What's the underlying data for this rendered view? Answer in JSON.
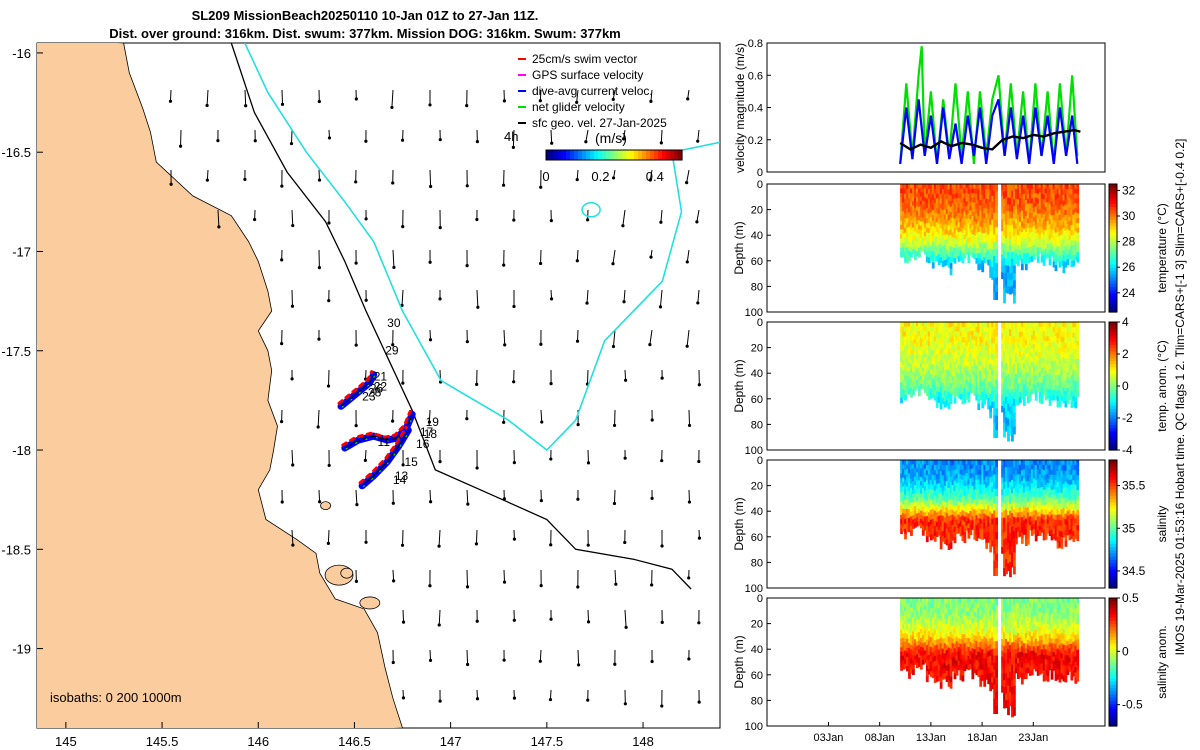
{
  "title": {
    "line1": "SL209 MissionBeach20250110 10-Jan 01Z to 27-Jan 11Z.",
    "line2": "Dist. over ground: 316km. Dist. swum: 377km. Mission DOG: 316km. Swum: 377km"
  },
  "side_label": "IMOS 19-Mar-2025 01:53:16 Hobart time. QC flags 1  2. Tlim=CARS+[-1 3] Slim=CARS+[-0.4 0.2]",
  "colors": {
    "land": "#fbcd9e",
    "coast_line": "#000000",
    "isobath_200": "#000000",
    "isobath_1000": "#22e0e0",
    "swim_vector": "#ff0000",
    "gps_velocity": "#ff00ff",
    "dive_avg": "#0000ff",
    "net_glider": "#00e000",
    "sfc_geo": "#000000"
  },
  "chart_data": [
    {
      "type": "map",
      "name": "glider track map",
      "xlim": [
        144.85,
        148.4
      ],
      "ylim": [
        -19.4,
        -15.95
      ],
      "xticks": [
        "145",
        "145.5",
        "146",
        "146.5",
        "147",
        "147.5",
        "148"
      ],
      "xtick_values": [
        145,
        145.5,
        146,
        146.5,
        147,
        147.5,
        148
      ],
      "yticks": [
        "-16",
        "-16.5",
        "-17",
        "-17.5",
        "-18",
        "-18.5",
        "-19"
      ],
      "ytick_values": [
        -16,
        -16.5,
        -17,
        -17.5,
        -18,
        -18.5,
        -19
      ],
      "isobaths_label": "isobaths: 0   200  1000m",
      "legend": [
        {
          "label": "25cm/s swim vector",
          "color": "#ff0000"
        },
        {
          "label": "GPS surface velocity",
          "color": "#ff00ff"
        },
        {
          "label": "dive-avg current veloc.",
          "color": "#0000ff"
        },
        {
          "label": "net glider velocity",
          "color": "#00e000"
        },
        {
          "label": "sfc geo. vel. 27-Jan-2025",
          "color": "#000000"
        }
      ],
      "colorbar": {
        "label": "(m/s)",
        "ticks": [
          "0",
          "0.2",
          "0.4"
        ],
        "tick_values": [
          0,
          0.2,
          0.4
        ],
        "range": [
          0,
          0.5
        ]
      },
      "time_label": "4h",
      "day_labels": [
        {
          "text": "30",
          "lon": 146.67,
          "lat": -17.38
        },
        {
          "text": "29",
          "lon": 146.66,
          "lat": -17.52
        },
        {
          "text": "21",
          "lon": 146.6,
          "lat": -17.65
        },
        {
          "text": "22",
          "lon": 146.6,
          "lat": -17.7
        },
        {
          "text": "26",
          "lon": 146.58,
          "lat": -17.71
        },
        {
          "text": "28",
          "lon": 146.57,
          "lat": -17.73
        },
        {
          "text": "23",
          "lon": 146.54,
          "lat": -17.75
        },
        {
          "text": "19",
          "lon": 146.87,
          "lat": -17.88
        },
        {
          "text": "18",
          "lon": 146.86,
          "lat": -17.94
        },
        {
          "text": "17",
          "lon": 146.84,
          "lat": -17.93
        },
        {
          "text": "16",
          "lon": 146.82,
          "lat": -17.99
        },
        {
          "text": "15",
          "lon": 146.76,
          "lat": -18.08
        },
        {
          "text": "14",
          "lon": 146.7,
          "lat": -18.17
        },
        {
          "text": "13",
          "lon": 146.71,
          "lat": -18.15
        },
        {
          "text": "11",
          "lon": 146.62,
          "lat": -17.98
        }
      ],
      "track_segments": [
        {
          "name": "track north",
          "lon": [
            146.43,
            146.48,
            146.53,
            146.58,
            146.6
          ],
          "lat": [
            -17.78,
            -17.74,
            -17.7,
            -17.66,
            -17.62
          ]
        },
        {
          "name": "track central",
          "lon": [
            146.45,
            146.52,
            146.6,
            146.67,
            146.72,
            146.77,
            146.8
          ],
          "lat": [
            -17.99,
            -17.95,
            -17.93,
            -17.95,
            -17.94,
            -17.89,
            -17.82
          ]
        },
        {
          "name": "track south",
          "lon": [
            146.54,
            146.6,
            146.67,
            146.73,
            146.78
          ],
          "lat": [
            -18.18,
            -18.13,
            -18.06,
            -17.98,
            -17.9
          ]
        }
      ]
    },
    {
      "type": "line",
      "name": "velocity magnitude",
      "ylabel": "velocity magnitude (m/s)",
      "ylim": [
        0,
        0.8
      ],
      "yticks": [
        "0",
        "0.2",
        "0.4",
        "0.6",
        "0.8"
      ],
      "ytick_values": [
        0,
        0.2,
        0.4,
        0.6,
        0.8
      ],
      "x_domain_days": [
        -3,
        30
      ],
      "series": [
        {
          "name": "net glider velocity",
          "color": "#00e000",
          "x": [
            10,
            10.6,
            11.2,
            11.8,
            12.1,
            12.4,
            13,
            13.6,
            14.2,
            14.8,
            15.4,
            16,
            16.6,
            17.2,
            17.8,
            18.4,
            19,
            19.6,
            20.2,
            20.8,
            21.4,
            22,
            22.6,
            23.2,
            23.8,
            24.4,
            25,
            25.6,
            26.2,
            26.8,
            27.3
          ],
          "y": [
            0.05,
            0.55,
            0.1,
            0.6,
            0.78,
            0.1,
            0.5,
            0.05,
            0.45,
            0.1,
            0.55,
            0.1,
            0.5,
            0.05,
            0.5,
            0.1,
            0.45,
            0.6,
            0.1,
            0.55,
            0.1,
            0.5,
            0.05,
            0.55,
            0.1,
            0.5,
            0.05,
            0.55,
            0.1,
            0.6,
            0.1
          ]
        },
        {
          "name": "dive-avg current",
          "color": "#0000ff",
          "x": [
            10,
            10.6,
            11.2,
            11.8,
            12.4,
            13,
            13.6,
            14.2,
            14.8,
            15.4,
            16,
            16.6,
            17.2,
            17.8,
            18.4,
            19,
            19.6,
            20.2,
            20.8,
            21.4,
            22,
            22.6,
            23.2,
            23.8,
            24.4,
            25,
            25.6,
            26.2,
            26.8,
            27.3
          ],
          "y": [
            0.05,
            0.4,
            0.08,
            0.45,
            0.1,
            0.35,
            0.05,
            0.4,
            0.08,
            0.3,
            0.05,
            0.35,
            0.1,
            0.4,
            0.05,
            0.35,
            0.45,
            0.1,
            0.4,
            0.08,
            0.35,
            0.05,
            0.4,
            0.1,
            0.35,
            0.05,
            0.4,
            0.1,
            0.35,
            0.05
          ]
        },
        {
          "name": "sfc geo. velocity",
          "color": "#000000",
          "x": [
            10,
            11,
            12,
            13,
            14,
            15,
            16,
            17,
            18,
            19,
            20,
            21,
            22,
            23,
            24,
            25,
            26,
            27,
            27.6
          ],
          "y": [
            0.18,
            0.14,
            0.17,
            0.15,
            0.19,
            0.16,
            0.18,
            0.17,
            0.15,
            0.14,
            0.2,
            0.22,
            0.21,
            0.23,
            0.22,
            0.24,
            0.25,
            0.26,
            0.25
          ]
        }
      ]
    },
    {
      "type": "heatmap",
      "name": "temperature",
      "ylabel": "Depth (m)",
      "colorbar_label": "temperature (°C)",
      "ylim": [
        0,
        100
      ],
      "yticks": [
        "0",
        "20",
        "40",
        "60",
        "80",
        "100"
      ],
      "ytick_values": [
        0,
        20,
        40,
        60,
        80,
        100
      ],
      "colorbar_ticks": [
        "24",
        "26",
        "28",
        "30",
        "32"
      ],
      "colorbar_values": [
        24,
        26,
        28,
        30,
        32
      ],
      "crange": [
        22.5,
        32.5
      ],
      "surface_value": 30.5,
      "bottom_value": 25.5,
      "cline_depth": 42,
      "bottom_depth": [
        58,
        54,
        62,
        66,
        60,
        58,
        64,
        70,
        88,
        62,
        58,
        60,
        64,
        62
      ]
    },
    {
      "type": "heatmap",
      "name": "temperature anomaly",
      "ylabel": "Depth (m)",
      "colorbar_label": "temp. anom. (°C)",
      "ylim": [
        0,
        100
      ],
      "yticks": [
        "0",
        "20",
        "40",
        "60",
        "80",
        "100"
      ],
      "ytick_values": [
        0,
        20,
        40,
        60,
        80,
        100
      ],
      "colorbar_ticks": [
        "-4",
        "-2",
        "0",
        "2",
        "4"
      ],
      "colorbar_values": [
        -4,
        -2,
        0,
        2,
        4
      ],
      "crange": [
        -4,
        4
      ],
      "surface_value": 1.0,
      "bottom_value": -1.5,
      "cline_depth": 45,
      "bottom_depth": [
        58,
        54,
        62,
        66,
        60,
        58,
        64,
        70,
        88,
        62,
        58,
        60,
        64,
        62
      ]
    },
    {
      "type": "heatmap",
      "name": "salinity",
      "ylabel": "Depth (m)",
      "colorbar_label": "salinity",
      "ylim": [
        0,
        100
      ],
      "yticks": [
        "0",
        "20",
        "40",
        "60",
        "80",
        "100"
      ],
      "ytick_values": [
        0,
        20,
        40,
        60,
        80,
        100
      ],
      "colorbar_ticks": [
        "34.5",
        "35",
        "35.5"
      ],
      "colorbar_values": [
        34.5,
        35,
        35.5
      ],
      "crange": [
        34.3,
        35.8
      ],
      "surface_value": 34.7,
      "bottom_value": 35.55,
      "cline_depth": 30,
      "bottom_depth": [
        58,
        54,
        62,
        66,
        60,
        58,
        64,
        70,
        88,
        62,
        58,
        60,
        64,
        62
      ]
    },
    {
      "type": "heatmap",
      "name": "salinity anomaly",
      "ylabel": "Depth (m)",
      "colorbar_label": "salinity anom.",
      "ylim": [
        0,
        100
      ],
      "yticks": [
        "0",
        "20",
        "40",
        "60",
        "80",
        "100"
      ],
      "ytick_values": [
        0,
        20,
        40,
        60,
        80,
        100
      ],
      "colorbar_ticks": [
        "-0.5",
        "0",
        "0.5"
      ],
      "colorbar_values": [
        -0.5,
        0,
        0.5
      ],
      "crange": [
        -0.7,
        0.5
      ],
      "surface_value": -0.1,
      "bottom_value": 0.35,
      "cline_depth": 28,
      "bottom_depth": [
        58,
        54,
        62,
        66,
        60,
        58,
        64,
        70,
        88,
        62,
        58,
        60,
        64,
        62
      ]
    },
    {
      "type": "axis",
      "name": "time axis",
      "x_domain_days": [
        -3,
        30
      ],
      "xticks": [
        "03Jan",
        "08Jan",
        "13Jan",
        "18Jan",
        "23Jan"
      ],
      "xtick_values": [
        3,
        8,
        13,
        18,
        23
      ]
    }
  ]
}
